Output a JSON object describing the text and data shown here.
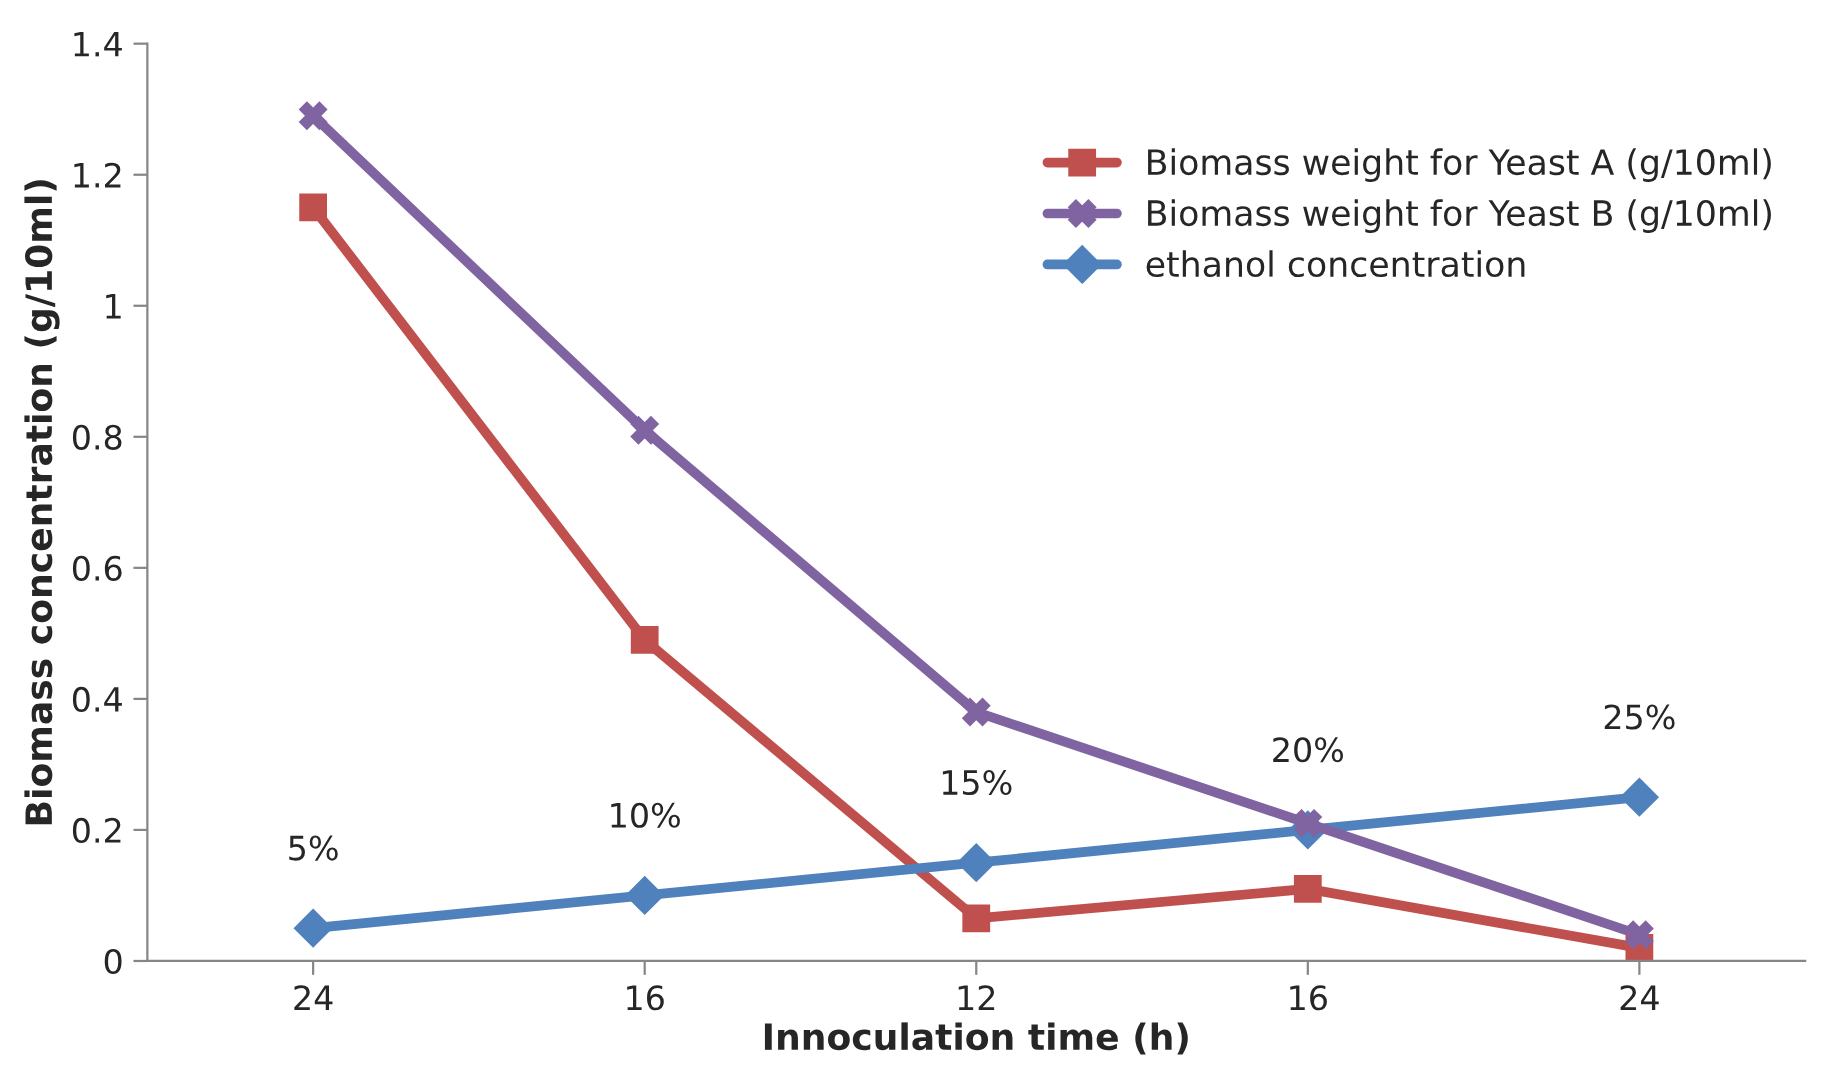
{
  "chart_data": {
    "type": "line",
    "xlabel": "Innoculation time (h)",
    "ylabel": "Biomass concentration (g/10ml)",
    "categories": [
      "24",
      "16",
      "12",
      "16",
      "24"
    ],
    "series": [
      {
        "name": "Biomass weight for Yeast A (g/10ml)",
        "color": "#c0504d",
        "marker": "square",
        "values": [
          1.15,
          0.49,
          0.065,
          0.11,
          0.02
        ]
      },
      {
        "name": "Biomass weight for Yeast B (g/10ml)",
        "color": "#8064a2",
        "marker": "cross",
        "values": [
          1.29,
          0.81,
          0.38,
          0.21,
          0.04
        ]
      },
      {
        "name": "ethanol concentration",
        "color": "#4f81bd",
        "marker": "diamond",
        "values": [
          0.05,
          0.1,
          0.15,
          0.2,
          0.25
        ],
        "value_labels": [
          "5%",
          "10%",
          "15%",
          "20%",
          "25%"
        ]
      }
    ],
    "ylim": [
      0,
      1.4
    ],
    "yticks": [
      {
        "value": 0,
        "label": "0"
      },
      0.2,
      0.4,
      0.6,
      0.8,
      {
        "value": 1,
        "label": "1"
      },
      1.2,
      1.4
    ],
    "grid": false,
    "legend": "top right"
  }
}
